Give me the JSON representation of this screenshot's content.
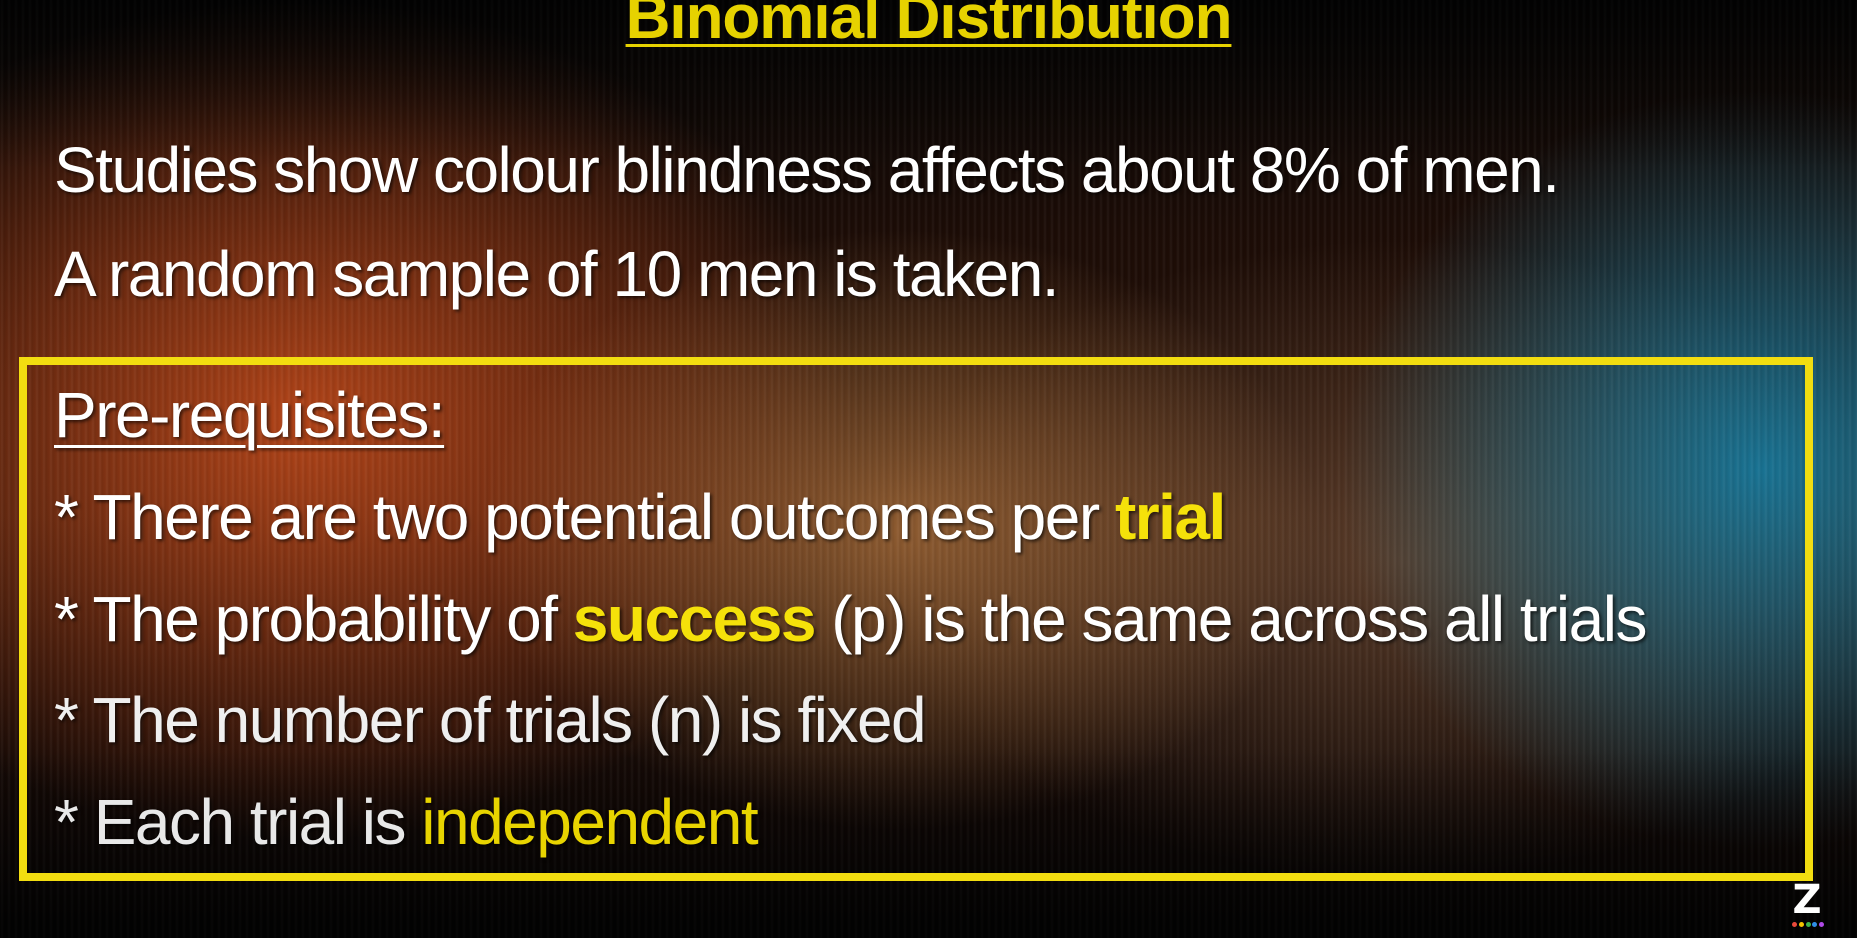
{
  "slide": {
    "title": "Binomial Distribution",
    "intro_lines": [
      "Studies show colour blindness affects about 8% of men.",
      "A random sample of 10 men is taken."
    ],
    "prerequisites": {
      "heading": "Pre-requisites:",
      "bullets": [
        {
          "marker": "*",
          "before": "There are two potential outcomes per ",
          "highlight": "trial",
          "after": ""
        },
        {
          "marker": "*",
          "before": "The probability of ",
          "highlight": "success",
          "after": " (p) is the same across all trials"
        },
        {
          "marker": "*",
          "before": "The number of trials (n) is fixed",
          "highlight": "",
          "after": ""
        },
        {
          "marker": "*",
          "before": "Each trial is ",
          "highlight": "independent",
          "after": ""
        }
      ]
    },
    "logo": {
      "letter": "Z",
      "icon": "z-logo-icon"
    },
    "colors": {
      "title": "#e6d200",
      "highlight": "#f5e10a",
      "box_border": "#f2dd10",
      "text": "#ffffff",
      "logo_dots": [
        "#e84a3c",
        "#f5c400",
        "#3cb44b",
        "#2f8fe8",
        "#b04be8"
      ]
    }
  }
}
